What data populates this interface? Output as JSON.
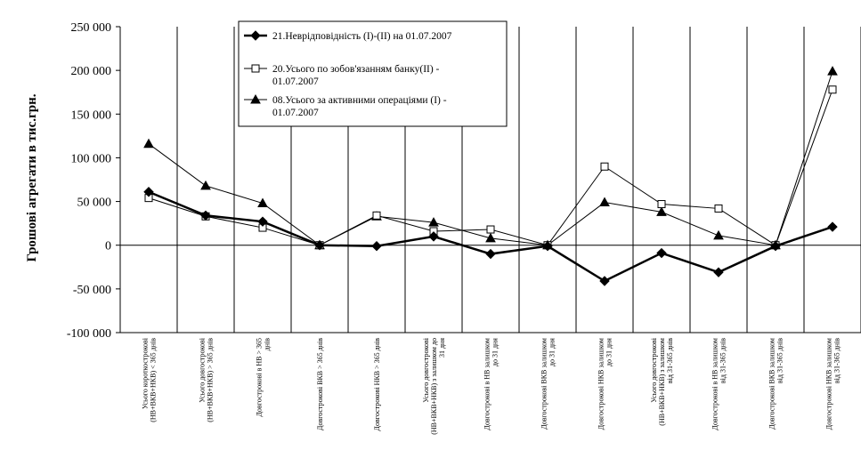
{
  "chart_data": {
    "type": "line",
    "title": "",
    "xlabel": "",
    "ylabel": "Грошові агрегати в тис.грн.",
    "ylim": [
      -100000,
      250000
    ],
    "yticks": [
      250000,
      200000,
      150000,
      100000,
      50000,
      0,
      -50000,
      -100000
    ],
    "ytick_labels": [
      "250 000",
      "200 000",
      "150 000",
      "100 000",
      "50 000",
      "0",
      "-50 000",
      "-100 000"
    ],
    "grid": "vertical",
    "legend_position": "top-center",
    "categories": [
      [
        "Усього короткострокові",
        "(НВ+ВКВ+НКВ) < 365 днів"
      ],
      [
        "Усього довгострокові",
        "(НВ+ВКВ+НКВ) > 365 днів"
      ],
      [
        "Довгострокові в НВ > 365",
        "днів"
      ],
      [
        "Довгострокові ВКВ > 365 днів"
      ],
      [
        "Довгострокові НКВ > 365 днів"
      ],
      [
        "Усього довгострокові",
        "(НВ+ВКВ+НКВ) з залишком до",
        "31 дня"
      ],
      [
        "Довгострокові в НВ залишком",
        "до 31 дня"
      ],
      [
        "Довгострокові ВКВ залишком",
        "до 31 дня"
      ],
      [
        "Довгострокові НКВ залишком",
        "до 31 дня"
      ],
      [
        "Усього довгострокові",
        "(НВ+ВКВ+НКВ) з залишком",
        "від 31-365 днів"
      ],
      [
        "Довгострокові в НВ залишком",
        "від 31-365 днів"
      ],
      [
        "Довгострокові ВКВ залишком",
        "від 31-365 днів"
      ],
      [
        "Довгострокові НКВ залишком",
        "від 31-365 днів"
      ]
    ],
    "series": [
      {
        "name": "21.Неврідповідність (I)-(II) на 01.07.2007",
        "legend_lines": [
          "21.Неврідповідність (I)-(II) на 01.07.2007"
        ],
        "marker": "diamond",
        "color": "#000000",
        "values": [
          61000,
          34000,
          27000,
          0,
          -1000,
          10000,
          -10000,
          -1000,
          -41000,
          -9000,
          -31000,
          -1000,
          21000
        ]
      },
      {
        "name": "20.Усього по зобов'язанням банку(II) - 01.07.2007",
        "legend_lines": [
          "20.Усього по зобов'язанням банку(II) -",
          "01.07.2007"
        ],
        "marker": "square",
        "color": "#000000",
        "values": [
          54000,
          33000,
          20000,
          0,
          34000,
          16000,
          18000,
          0,
          90000,
          47000,
          42000,
          0,
          178000
        ]
      },
      {
        "name": "08.Усього за активними операціями (I) - 01.07.2007",
        "legend_lines": [
          "08.Усього за активними операціями (I) -",
          "01.07.2007"
        ],
        "marker": "triangle",
        "color": "#000000",
        "values": [
          116000,
          68000,
          48000,
          0,
          33000,
          26000,
          8000,
          0,
          49000,
          38000,
          11000,
          0,
          199000
        ]
      }
    ]
  }
}
